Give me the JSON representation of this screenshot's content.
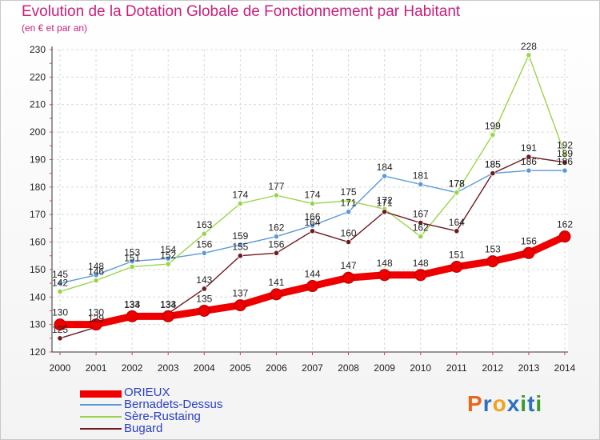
{
  "title": "Evolution de la Dotation Globale de Fonctionnement par Habitant",
  "subtitle": "(en € et par an)",
  "logo": {
    "letters": [
      "P",
      "r",
      "o",
      "x",
      "i",
      "t",
      "i"
    ],
    "colors": [
      "#e9661e",
      "#2e6fc0",
      "#f0a21c",
      "#2e6fc0",
      "#3a9a2c",
      "#2e6fc0",
      "#3a9a2c"
    ]
  },
  "chart_data": {
    "type": "line",
    "title": "Evolution de la Dotation Globale de Fonctionnement par Habitant",
    "ylabel": "(en € et par an)",
    "xlabel": "",
    "x": [
      "2000",
      "2001",
      "2002",
      "2003",
      "2004",
      "2005",
      "2006",
      "2007",
      "2008",
      "2009",
      "2010",
      "2011",
      "2012",
      "2013",
      "2014"
    ],
    "ylim": [
      120,
      230
    ],
    "yticks": [
      120,
      130,
      140,
      150,
      160,
      170,
      180,
      190,
      200,
      210,
      220,
      230
    ],
    "grid": true,
    "legend_position": "bottom-left",
    "series": [
      {
        "name": "ORIEUX",
        "color": "#ee0000",
        "emphasis": true,
        "values": [
          130,
          130,
          133,
          133,
          135,
          137,
          141,
          144,
          147,
          148,
          148,
          151,
          153,
          156,
          162
        ],
        "labels": [
          "130",
          "130",
          "133",
          "133",
          "135",
          "137",
          "141",
          "144",
          "147",
          "148",
          "148",
          "151",
          "153",
          "156",
          "162"
        ]
      },
      {
        "name": "Bernadets-Dessus",
        "color": "#5a9ad6",
        "emphasis": false,
        "values": [
          145,
          148,
          153,
          154,
          156,
          159,
          162,
          166,
          171,
          184,
          181,
          178,
          185,
          186,
          186
        ],
        "labels": [
          "145",
          "148",
          "153",
          "154",
          "156",
          "159",
          "162",
          "166",
          "171",
          "184",
          "181",
          "178",
          "185",
          "186",
          "186"
        ]
      },
      {
        "name": "Sère-Rustaing",
        "color": "#9ad44a",
        "emphasis": false,
        "values": [
          142,
          146,
          151,
          152,
          163,
          174,
          177,
          174,
          175,
          172,
          162,
          178,
          199,
          228,
          192
        ],
        "labels": [
          "142",
          "146",
          "151",
          "152",
          "163",
          "174",
          "177",
          "174",
          "175",
          "172",
          "162",
          "178",
          "199",
          "228",
          "192"
        ]
      },
      {
        "name": "Bugard",
        "color": "#6e1a1e",
        "emphasis": false,
        "values": [
          125,
          129,
          134,
          134,
          143,
          155,
          156,
          164,
          160,
          171,
          167,
          164,
          185,
          191,
          189
        ],
        "labels": [
          "125",
          "129",
          "134",
          "134",
          "143",
          "155",
          "156",
          "164",
          "160",
          "171",
          "167",
          "164",
          "185",
          "191",
          "189"
        ]
      }
    ]
  }
}
